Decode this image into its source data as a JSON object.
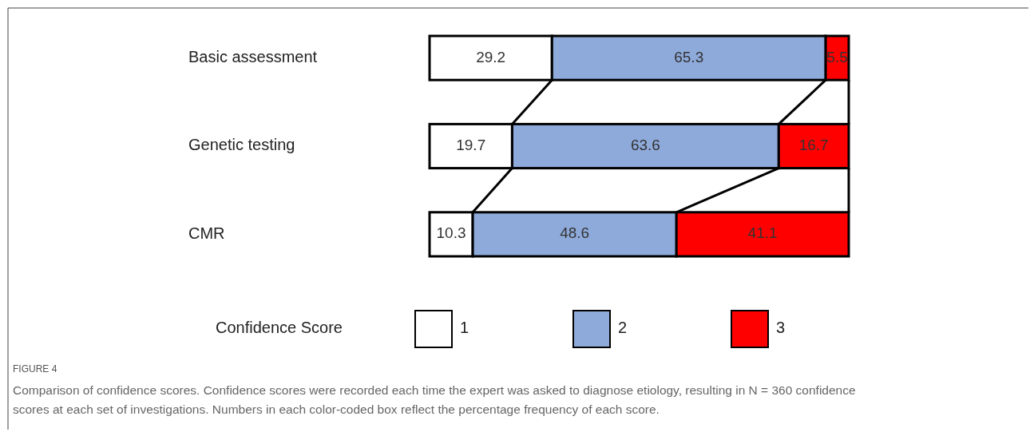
{
  "chart_data": {
    "type": "bar",
    "orientation": "horizontal",
    "stacked": true,
    "data_labels": true,
    "legend": "bottom",
    "legend_title": "Confidence Score",
    "categories": [
      "Basic assessment",
      "Genetic testing",
      "CMR"
    ],
    "series": [
      {
        "name": "1",
        "color": "#ffffff",
        "values": [
          29.2,
          19.7,
          10.3
        ]
      },
      {
        "name": "2",
        "color": "#8eaadb",
        "values": [
          65.3,
          63.6,
          48.6
        ]
      },
      {
        "name": "3",
        "color": "#ff0000",
        "values": [
          5.5,
          16.7,
          41.1
        ]
      }
    ],
    "annotations": [
      "FIGURE 4",
      "Comparison of confidence scores. Confidence scores were recorded each time the expert was asked to diagnose etiology, resulting in N = 360 confidence scores at each set of investigations. Numbers in each color-coded box reflect the percentage frequency of each score."
    ]
  }
}
